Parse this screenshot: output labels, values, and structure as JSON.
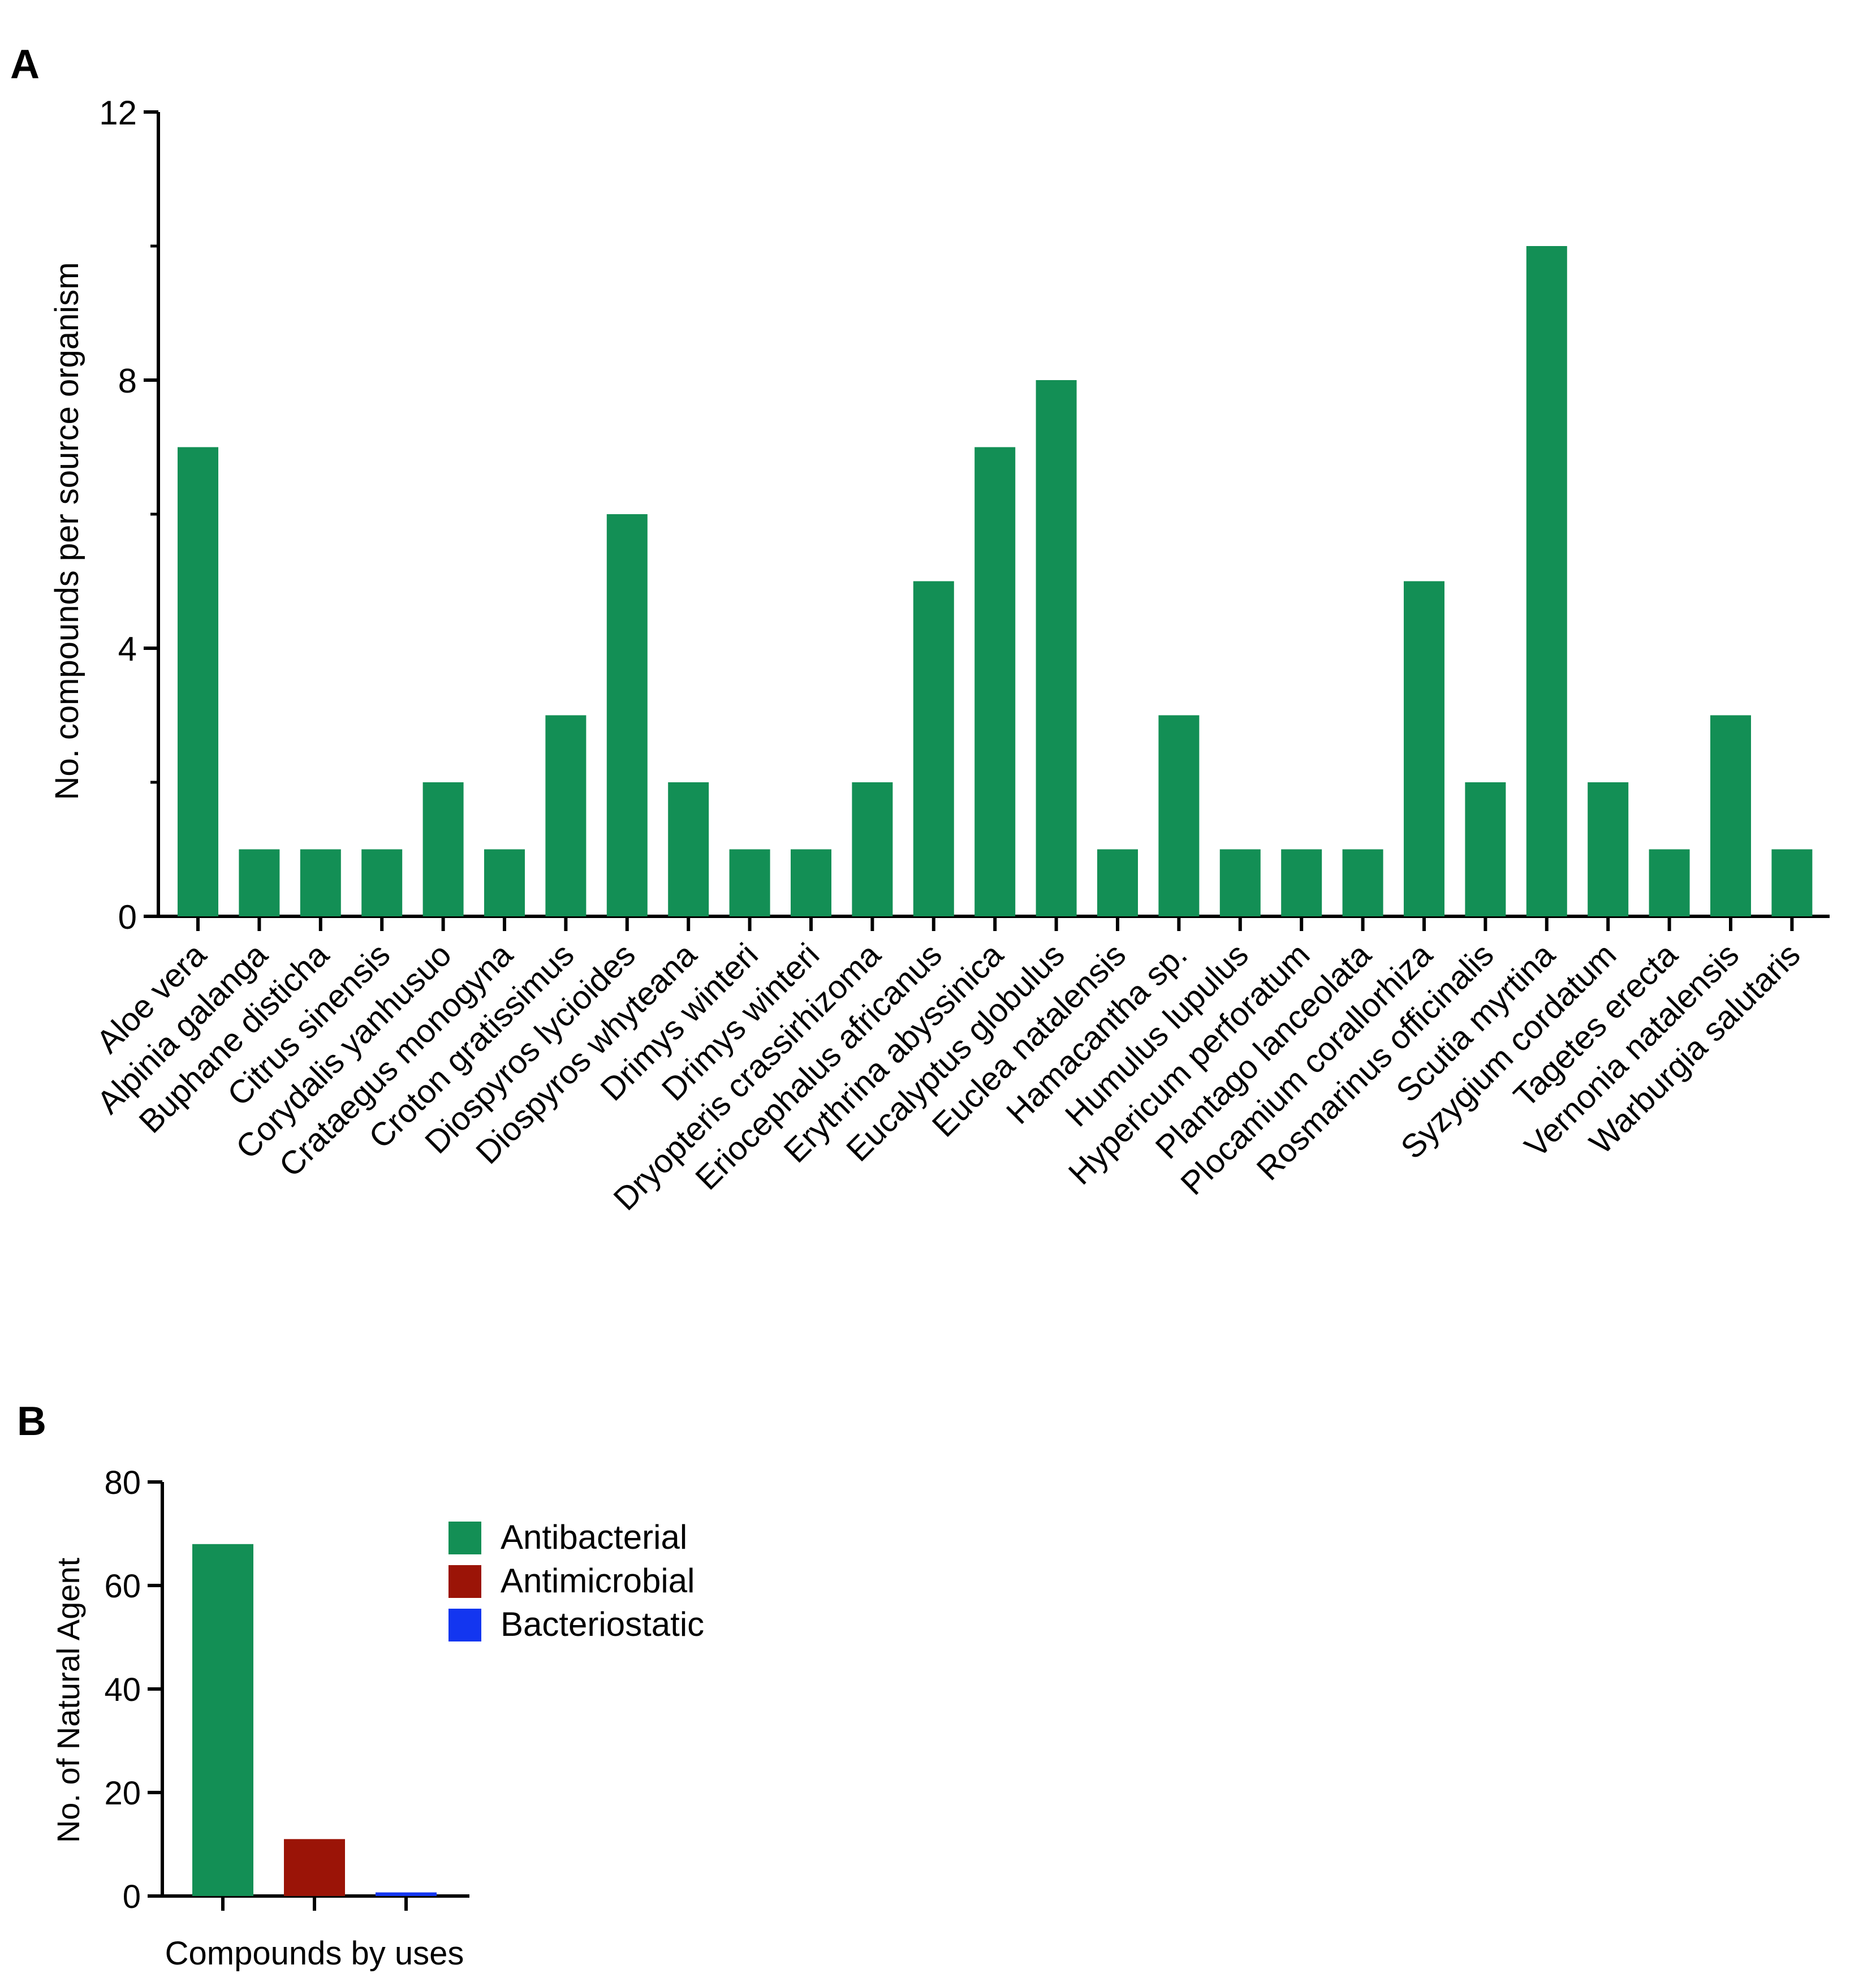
{
  "panels": {
    "a": "A",
    "b": "B"
  },
  "chart_data": [
    {
      "panel": "A",
      "type": "bar",
      "title": "",
      "xlabel": "",
      "ylabel": "No. compounds per source organism",
      "ylim": [
        0,
        12
      ],
      "yticks": [
        0,
        4,
        8,
        12
      ],
      "grid": false,
      "bar_color": "#138F55",
      "categories": [
        "Aloe vera",
        "Alpinia galanga",
        "Buphane disticha",
        "Citrus sinensis",
        "Corydalis yanhusuo",
        "Crataegus monogyna",
        "Croton gratissimus",
        "Diospyros lycioides",
        "Diospyros whyteana",
        "Drimys winteri",
        "Drimys winteri",
        "Dryopteris crassirhizoma",
        "Eriocephalus africanus",
        "Erythrina abyssinica",
        "Eucalyptus globulus",
        "Euclea natalensis",
        "Hamacantha sp.",
        "Humulus lupulus",
        "Hypericum perforatum",
        "Plantago lanceolata",
        "Plocamium corallorhiza",
        "Rosmarinus officinalis",
        "Scutia myrtina",
        "Syzygium cordatum",
        "Tagetes erecta",
        "Vernonia natalensis",
        "Warburgia salutaris"
      ],
      "values": [
        7,
        1,
        1,
        1,
        2,
        1,
        3,
        6,
        2,
        1,
        1,
        2,
        5,
        7,
        8,
        1,
        3,
        1,
        1,
        1,
        5,
        2,
        10,
        2,
        1,
        3,
        1
      ]
    },
    {
      "panel": "B",
      "type": "bar",
      "title": "",
      "xlabel": "Compounds by uses",
      "ylabel": "No. of Natural Agent",
      "ylim": [
        0,
        80
      ],
      "yticks": [
        0,
        20,
        40,
        60,
        80
      ],
      "grid": false,
      "legend_position": "right",
      "series": [
        {
          "name": "Antibacterial",
          "values": [
            68
          ],
          "color": "#138F55"
        },
        {
          "name": "Antimicrobial",
          "values": [
            11
          ],
          "color": "#9B1407"
        },
        {
          "name": "Bacteriostatic",
          "values": [
            0.7
          ],
          "color": "#1336F0"
        }
      ]
    }
  ]
}
